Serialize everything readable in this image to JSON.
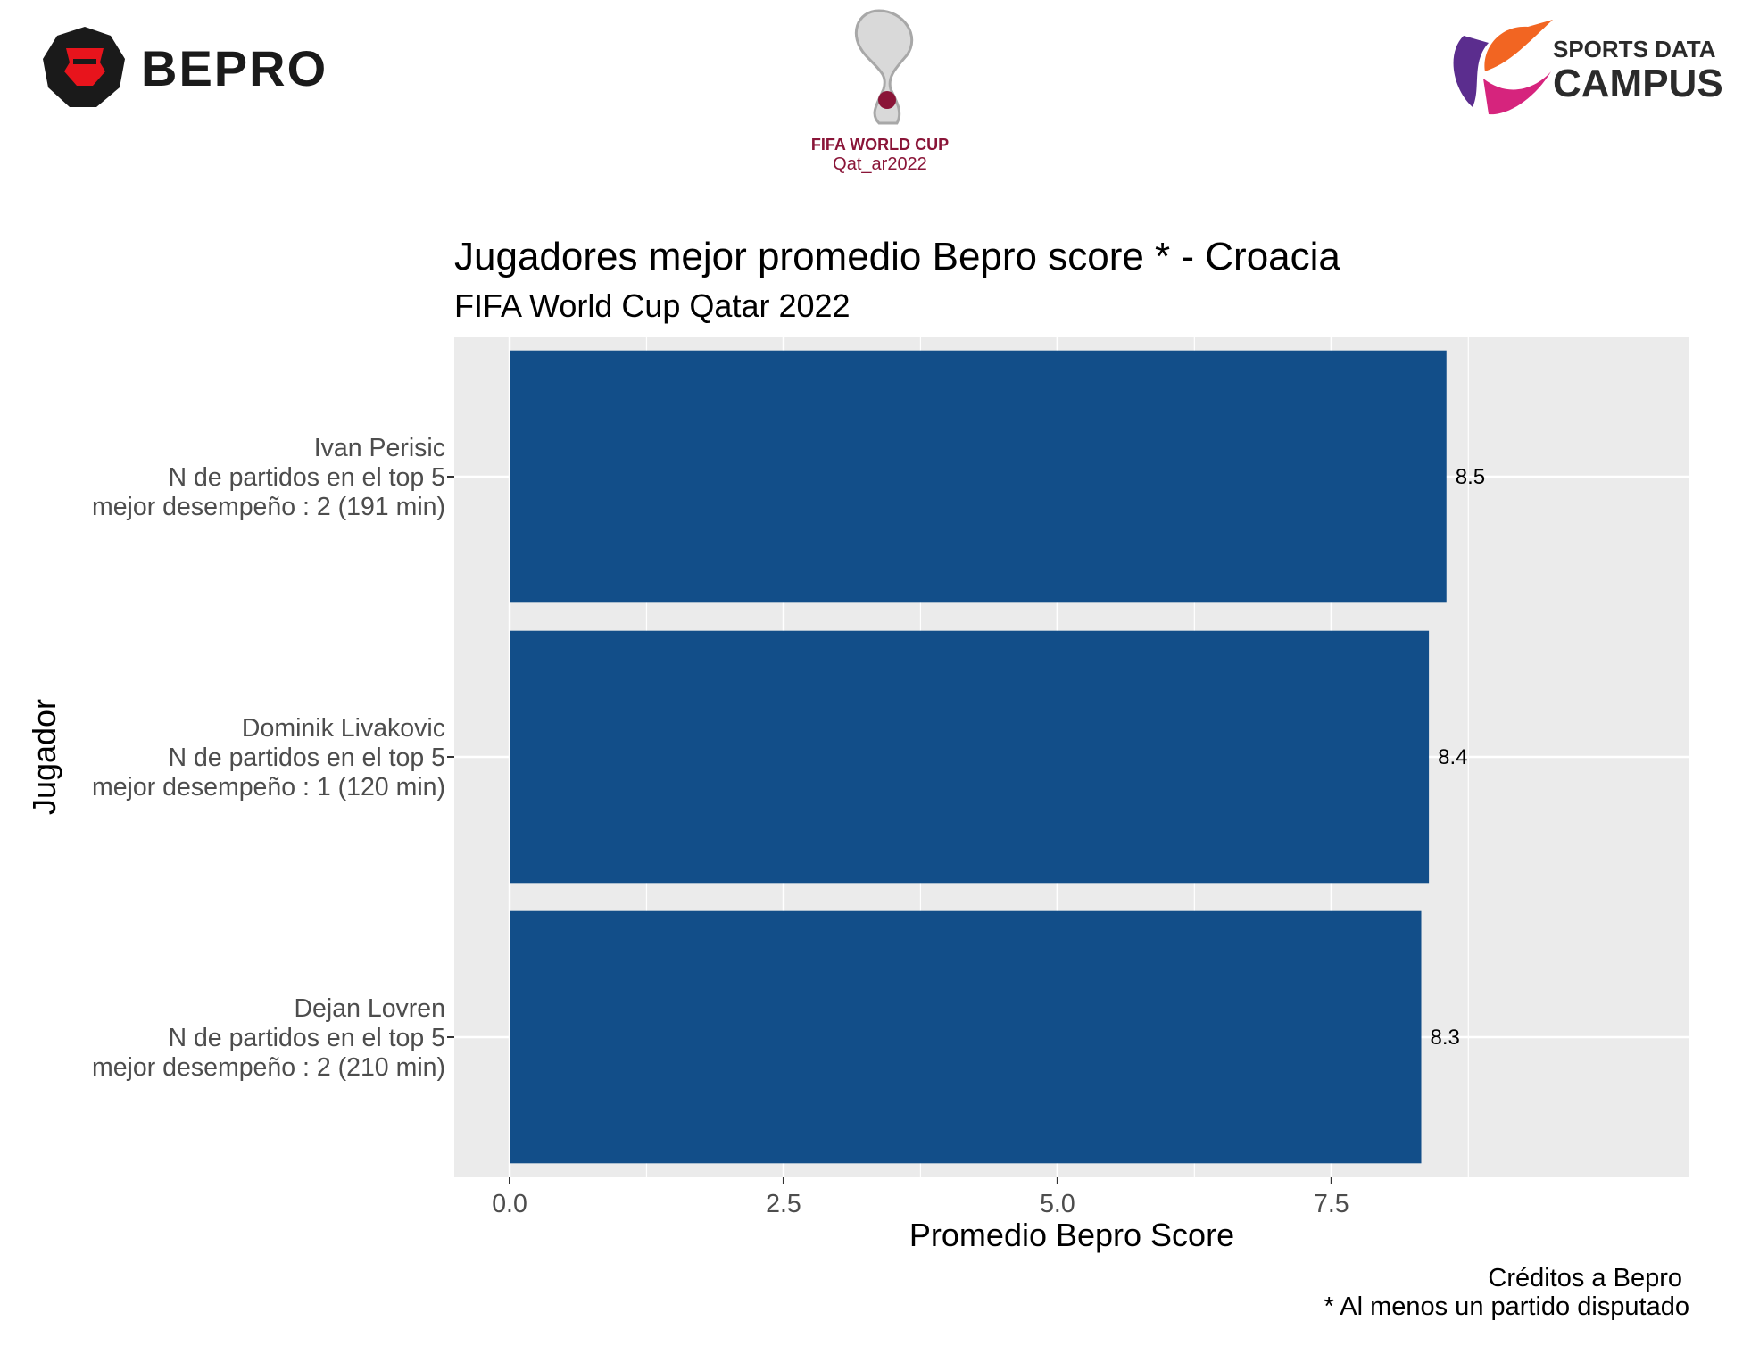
{
  "logos": {
    "bepro": {
      "text": "BEPRO",
      "colors": {
        "badge": "#1a1a1a",
        "accent": "#e8141c"
      }
    },
    "world_cup": {
      "line1": "FIFA WORLD CUP",
      "line2": "Qat_ar2022",
      "color": "#8a1538"
    },
    "sports_data_campus": {
      "line1": "SPORTS DATA",
      "line2": "CAMPUS",
      "colors": {
        "purple": "#5b2d8e",
        "orange": "#f26522",
        "magenta": "#d6247d",
        "text": "#2b2b2b"
      }
    }
  },
  "chart_data": {
    "type": "bar",
    "orientation": "horizontal",
    "title": "Jugadores mejor promedio Bepro score * - Croacia",
    "subtitle": "FIFA World Cup Qatar 2022",
    "xlabel": "Promedio Bepro Score",
    "ylabel": "Jugador",
    "xlim": [
      0,
      9
    ],
    "x_ticks": [
      0.0,
      2.5,
      5.0,
      7.5
    ],
    "x_tick_labels": [
      "0.0",
      "2.5",
      "5.0",
      "7.5"
    ],
    "grid": true,
    "bar_color": "#124e89",
    "panel_background": "#ebebeb",
    "categories": [
      {
        "lines": [
          "Ivan Perisic",
          "N de partidos en el top 5",
          "mejor desempeño : 2 (191 min)"
        ]
      },
      {
        "lines": [
          "Dominik Livakovic",
          "N de partidos en el top 5",
          "mejor desempeño : 1 (120 min)"
        ]
      },
      {
        "lines": [
          "Dejan Lovren",
          "N de partidos en el top 5",
          "mejor desempeño : 2 (210 min)"
        ]
      }
    ],
    "values": [
      8.55,
      8.39,
      8.32
    ],
    "value_labels": [
      "8.5",
      "8.4",
      "8.3"
    ],
    "caption": [
      "Créditos a Bepro",
      "* Al menos un partido disputado"
    ]
  }
}
